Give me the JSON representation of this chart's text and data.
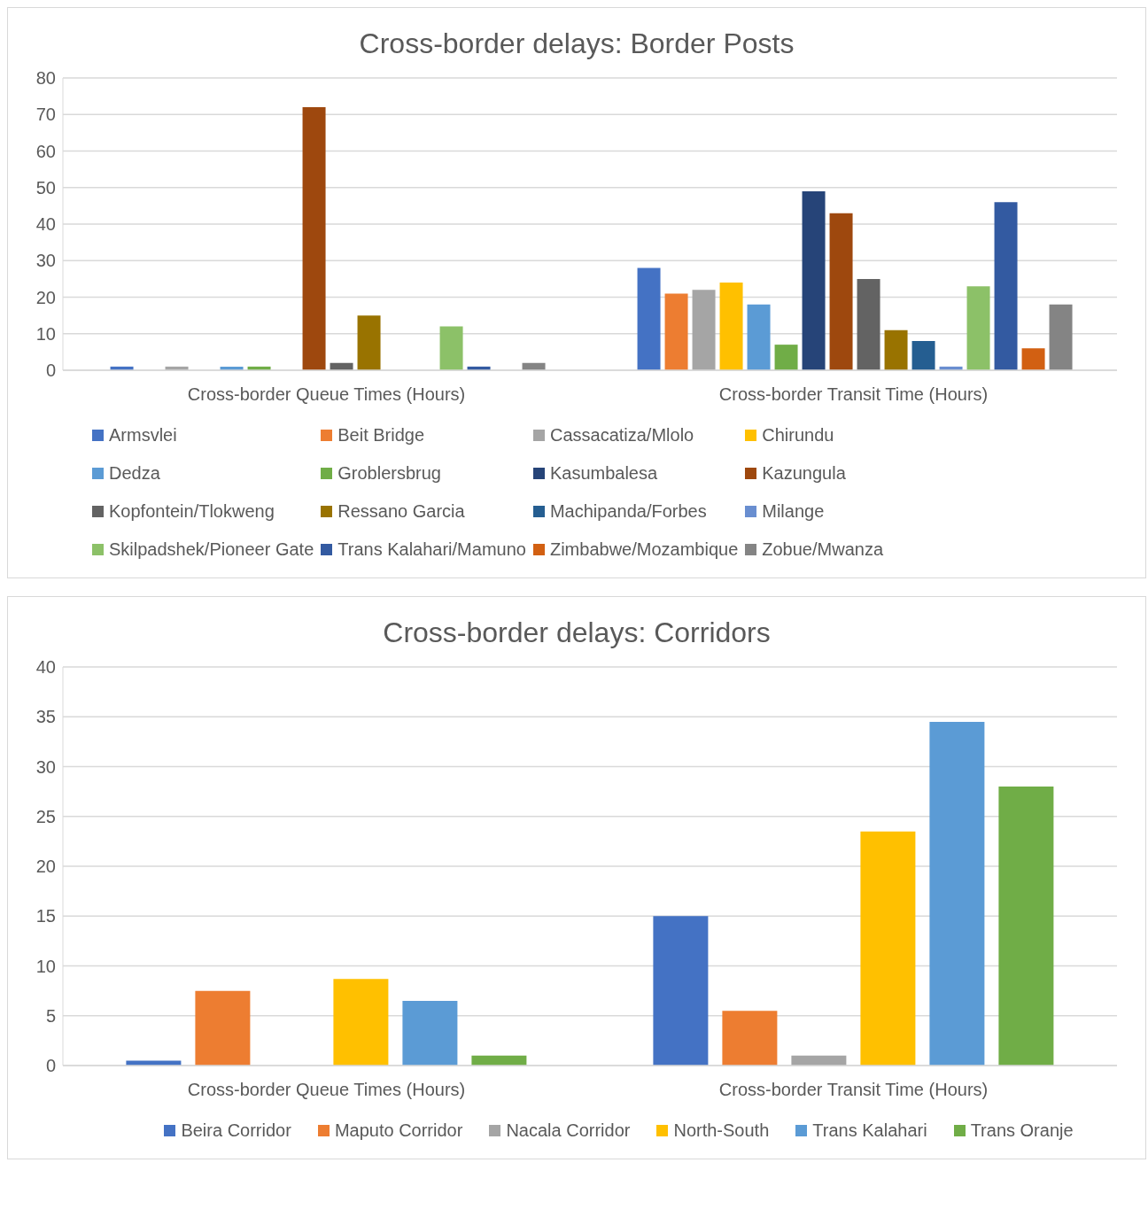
{
  "chart_data": [
    {
      "type": "bar",
      "title": "Cross-border delays: Border Posts",
      "categories": [
        "Cross-border Queue Times (Hours)",
        "Cross-border Transit Time (Hours)"
      ],
      "ylim": [
        0,
        80
      ],
      "yticks": [
        0,
        10,
        20,
        30,
        40,
        50,
        60,
        70,
        80
      ],
      "grid": "y",
      "legend": "bottom",
      "series": [
        {
          "name": "Armsvlei",
          "color": "#4472c4",
          "values": [
            1,
            28
          ]
        },
        {
          "name": "Beit Bridge",
          "color": "#ed7d31",
          "values": [
            null,
            21
          ]
        },
        {
          "name": "Cassacatiza/Mlolo",
          "color": "#a5a5a5",
          "values": [
            1,
            22
          ]
        },
        {
          "name": "Chirundu",
          "color": "#ffc000",
          "values": [
            null,
            24
          ]
        },
        {
          "name": "Dedza",
          "color": "#5b9bd5",
          "values": [
            1,
            18
          ]
        },
        {
          "name": "Groblersbrug",
          "color": "#70ad47",
          "values": [
            1,
            7
          ]
        },
        {
          "name": "Kasumbalesa",
          "color": "#264478",
          "values": [
            null,
            49
          ]
        },
        {
          "name": "Kazungula",
          "color": "#9e480e",
          "values": [
            72,
            43
          ]
        },
        {
          "name": "Kopfontein/Tlokweng",
          "color": "#636363",
          "values": [
            2,
            25
          ]
        },
        {
          "name": "Ressano Garcia",
          "color": "#997300",
          "values": [
            15,
            11
          ]
        },
        {
          "name": "Machipanda/Forbes",
          "color": "#255e91",
          "values": [
            null,
            8
          ]
        },
        {
          "name": "Milange",
          "color": "#698ed0",
          "values": [
            null,
            1
          ]
        },
        {
          "name": "Skilpadshek/Pioneer Gate",
          "color": "#8cc168",
          "values": [
            12,
            23
          ]
        },
        {
          "name": "Trans Kalahari/Mamuno",
          "color": "#335aa1",
          "values": [
            1,
            46
          ]
        },
        {
          "name": "Zimbabwe/Mozambique",
          "color": "#d26012",
          "values": [
            null,
            6
          ]
        },
        {
          "name": "Zobue/Mwanza",
          "color": "#848484",
          "values": [
            2,
            18
          ]
        }
      ]
    },
    {
      "type": "bar",
      "title": "Cross-border delays: Corridors",
      "categories": [
        "Cross-border Queue Times (Hours)",
        "Cross-border Transit Time (Hours)"
      ],
      "ylim": [
        0,
        40
      ],
      "yticks": [
        0,
        5,
        10,
        15,
        20,
        25,
        30,
        35,
        40
      ],
      "grid": "y",
      "legend": "bottom",
      "series": [
        {
          "name": "Beira Corridor",
          "color": "#4472c4",
          "values": [
            0.5,
            15
          ]
        },
        {
          "name": "Maputo Corridor",
          "color": "#ed7d31",
          "values": [
            7.5,
            5.5
          ]
        },
        {
          "name": "Nacala Corridor",
          "color": "#a5a5a5",
          "values": [
            null,
            1
          ]
        },
        {
          "name": "North-South",
          "color": "#ffc000",
          "values": [
            8.7,
            23.5
          ]
        },
        {
          "name": "Trans Kalahari",
          "color": "#5b9bd5",
          "values": [
            6.5,
            34.5
          ]
        },
        {
          "name": "Trans Oranje",
          "color": "#70ad47",
          "values": [
            1,
            28
          ]
        }
      ]
    }
  ]
}
